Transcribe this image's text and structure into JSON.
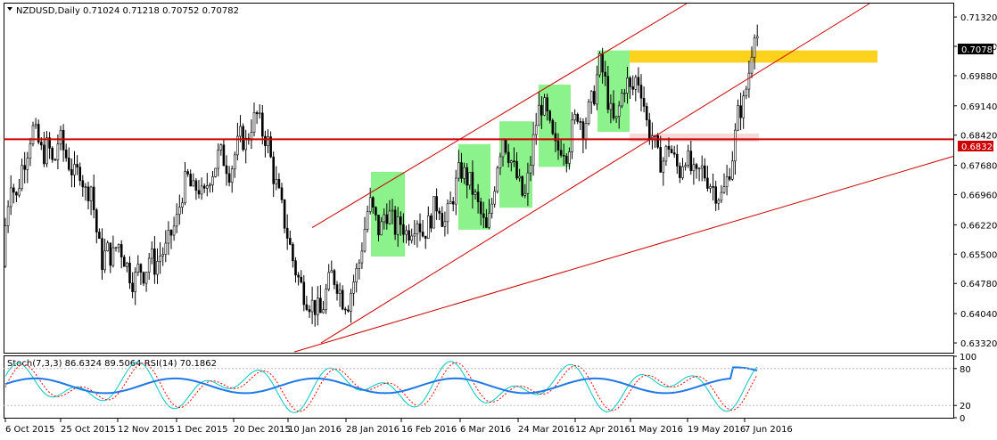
{
  "window": {
    "header_symbol": "NZDUSD,Daily",
    "header_ohlc": "0.71024 0.71218 0.70752 0.70782"
  },
  "chart_data": [
    {
      "type": "candlestick",
      "symbol": "NZDUSD",
      "timeframe": "Daily",
      "open": 0.71024,
      "high": 0.71218,
      "low": 0.70752,
      "close": 0.70782,
      "ylim": [
        0.6308,
        0.7165
      ],
      "y_ticks": [
        "0.71320",
        "0.70600",
        "0.69880",
        "0.69140",
        "0.68420",
        "0.67680",
        "0.66960",
        "0.66220",
        "0.65500",
        "0.64780",
        "0.64040",
        "0.63320"
      ],
      "y_tick_values": [
        0.7132,
        0.706,
        0.6988,
        0.6914,
        0.6842,
        0.6768,
        0.6696,
        0.6622,
        0.655,
        0.6478,
        0.6404,
        0.6332
      ],
      "x_ticks": [
        "6 Oct 2015",
        "25 Oct 2015",
        "12 Nov 2015",
        "1 Dec 2015",
        "20 Dec 2015",
        "10 Jan 2016",
        "28 Jan 2016",
        "16 Feb 2016",
        "6 Mar 2016",
        "24 Mar 2016",
        "12 Apr 2016",
        "1 May 2016",
        "19 May 2016",
        "7 Jun 2016"
      ],
      "current_price_label": "0.70782",
      "horizontal_line_label": "0.68320",
      "horizontal_line_value": 0.6832,
      "colors": {
        "bars": "#000000",
        "trendlines": "#cc0000",
        "hline": "#cc0000",
        "zones_green": "#66ee66",
        "zone_yellow": "#ffd21e"
      },
      "close_path": [
        [
          0,
          0.652
        ],
        [
          6,
          0.662
        ],
        [
          12,
          0.674
        ],
        [
          18,
          0.668
        ],
        [
          24,
          0.676
        ],
        [
          30,
          0.68
        ],
        [
          36,
          0.686
        ],
        [
          42,
          0.683
        ],
        [
          48,
          0.679
        ],
        [
          54,
          0.682
        ],
        [
          60,
          0.676
        ],
        [
          66,
          0.684
        ],
        [
          72,
          0.68
        ],
        [
          78,
          0.677
        ],
        [
          84,
          0.674
        ],
        [
          90,
          0.676
        ],
        [
          96,
          0.67
        ],
        [
          102,
          0.672
        ],
        [
          108,
          0.661
        ],
        [
          114,
          0.653
        ],
        [
          120,
          0.656
        ],
        [
          126,
          0.654
        ],
        [
          132,
          0.658
        ],
        [
          138,
          0.655
        ],
        [
          144,
          0.651
        ],
        [
          150,
          0.648
        ],
        [
          156,
          0.652
        ],
        [
          162,
          0.65
        ],
        [
          168,
          0.655
        ],
        [
          174,
          0.652
        ],
        [
          180,
          0.655
        ],
        [
          186,
          0.656
        ],
        [
          192,
          0.66
        ],
        [
          198,
          0.663
        ],
        [
          204,
          0.67
        ],
        [
          210,
          0.674
        ],
        [
          216,
          0.67
        ],
        [
          222,
          0.672
        ],
        [
          228,
          0.668
        ],
        [
          234,
          0.674
        ],
        [
          240,
          0.676
        ],
        [
          246,
          0.68
        ],
        [
          252,
          0.678
        ],
        [
          258,
          0.675
        ],
        [
          264,
          0.68
        ],
        [
          270,
          0.684
        ],
        [
          276,
          0.682
        ],
        [
          282,
          0.687
        ],
        [
          288,
          0.689
        ],
        [
          294,
          0.685
        ],
        [
          300,
          0.683
        ],
        [
          306,
          0.675
        ],
        [
          312,
          0.67
        ],
        [
          318,
          0.664
        ],
        [
          324,
          0.658
        ],
        [
          330,
          0.652
        ],
        [
          336,
          0.648
        ],
        [
          342,
          0.645
        ],
        [
          348,
          0.643
        ],
        [
          354,
          0.642
        ],
        [
          360,
          0.64
        ],
        [
          366,
          0.646
        ],
        [
          372,
          0.65
        ],
        [
          378,
          0.648
        ],
        [
          384,
          0.644
        ],
        [
          390,
          0.643
        ],
        [
          396,
          0.648
        ],
        [
          402,
          0.652
        ],
        [
          408,
          0.66
        ],
        [
          414,
          0.668
        ],
        [
          420,
          0.664
        ],
        [
          426,
          0.66
        ],
        [
          432,
          0.666
        ],
        [
          438,
          0.664
        ],
        [
          444,
          0.661
        ],
        [
          450,
          0.663
        ],
        [
          456,
          0.66
        ],
        [
          462,
          0.662
        ],
        [
          468,
          0.664
        ],
        [
          474,
          0.66
        ],
        [
          480,
          0.662
        ],
        [
          486,
          0.666
        ],
        [
          492,
          0.668
        ],
        [
          498,
          0.662
        ],
        [
          504,
          0.666
        ],
        [
          510,
          0.671
        ],
        [
          516,
          0.676
        ],
        [
          522,
          0.674
        ],
        [
          528,
          0.672
        ],
        [
          534,
          0.668
        ],
        [
          540,
          0.664
        ],
        [
          546,
          0.66
        ],
        [
          552,
          0.668
        ],
        [
          558,
          0.678
        ],
        [
          564,
          0.684
        ],
        [
          570,
          0.68
        ],
        [
          576,
          0.676
        ],
        [
          582,
          0.672
        ],
        [
          588,
          0.668
        ],
        [
          594,
          0.676
        ],
        [
          600,
          0.686
        ],
        [
          606,
          0.692
        ],
        [
          612,
          0.69
        ],
        [
          618,
          0.684
        ],
        [
          624,
          0.68
        ],
        [
          630,
          0.682
        ],
        [
          636,
          0.68
        ],
        [
          642,
          0.686
        ],
        [
          648,
          0.69
        ],
        [
          654,
          0.686
        ],
        [
          660,
          0.69
        ],
        [
          666,
          0.694
        ],
        [
          672,
          0.702
        ],
        [
          678,
          0.698
        ],
        [
          684,
          0.69
        ],
        [
          690,
          0.686
        ],
        [
          696,
          0.693
        ],
        [
          702,
          0.698
        ],
        [
          708,
          0.694
        ],
        [
          714,
          0.699
        ],
        [
          720,
          0.695
        ],
        [
          726,
          0.686
        ],
        [
          732,
          0.684
        ],
        [
          738,
          0.678
        ],
        [
          744,
          0.678
        ],
        [
          750,
          0.682
        ],
        [
          756,
          0.678
        ],
        [
          762,
          0.675
        ],
        [
          768,
          0.68
        ],
        [
          774,
          0.676
        ],
        [
          780,
          0.673
        ],
        [
          786,
          0.676
        ],
        [
          792,
          0.674
        ],
        [
          798,
          0.672
        ],
        [
          804,
          0.67
        ],
        [
          810,
          0.669
        ],
        [
          816,
          0.674
        ],
        [
          822,
          0.68
        ],
        [
          828,
          0.69
        ],
        [
          834,
          0.692
        ],
        [
          840,
          0.7
        ],
        [
          846,
          0.711
        ],
        [
          850,
          0.708
        ]
      ],
      "osc_ticks": [
        "100",
        "80",
        "20",
        "0"
      ],
      "osc_tick_values": [
        100,
        80,
        20,
        0
      ]
    },
    {
      "type": "line",
      "indicator_label": "Stoch(7,3,3) 86.6324 89.5064  RSI(14) 70.1862",
      "ylim": [
        0,
        100
      ],
      "colors": {
        "stoch_main": "#00c8c8",
        "stoch_signal": "#ff0000",
        "rsi": "#1e78e6"
      }
    }
  ]
}
